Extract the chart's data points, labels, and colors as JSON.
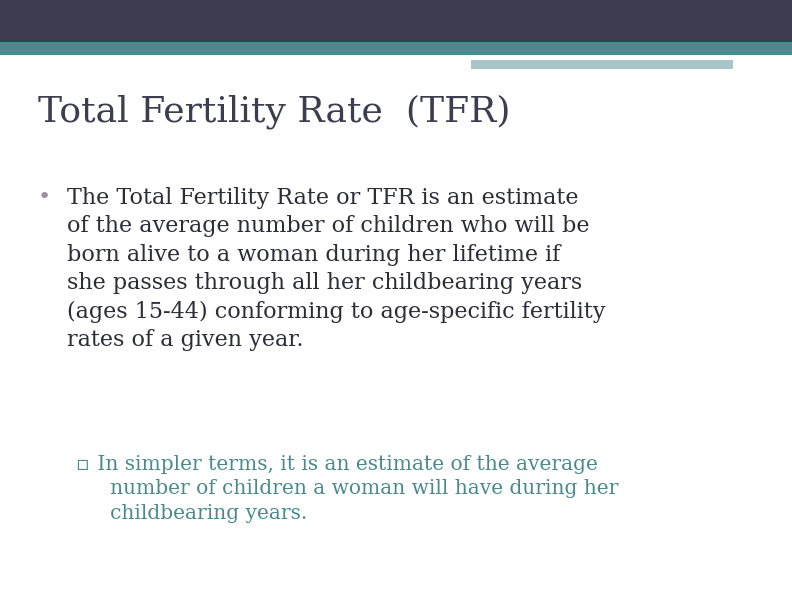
{
  "header_bar_color": "#3d3d4f",
  "teal_bar_color": "#4a8a8c",
  "light_teal_bar_color": "#a8c5c8",
  "background_color": "#ffffff",
  "title": "Total Fertility Rate  (TFR)",
  "title_color": "#3d3d4f",
  "title_fontsize": 26,
  "bullet_color": "#2d2d3a",
  "bullet_text": "The Total Fertility Rate or TFR is an estimate\nof the average number of children who will be\nborn alive to a woman during her lifetime if\nshe passes through all her childbearing years\n(ages 15-44) conforming to age-specific fertility\nrates of a given year.",
  "bullet_fontsize": 16,
  "bullet_marker": "•",
  "bullet_marker_color": "#9b8fa0",
  "sub_bullet_color": "#4a8a8c",
  "sub_bullet_marker": "▫",
  "sub_bullet_line1": " In simpler terms, it is an estimate of the average",
  "sub_bullet_line2": "   number of children a woman will have during her",
  "sub_bullet_line3": "   childbearing years.",
  "sub_bullet_fontsize": 14.5
}
